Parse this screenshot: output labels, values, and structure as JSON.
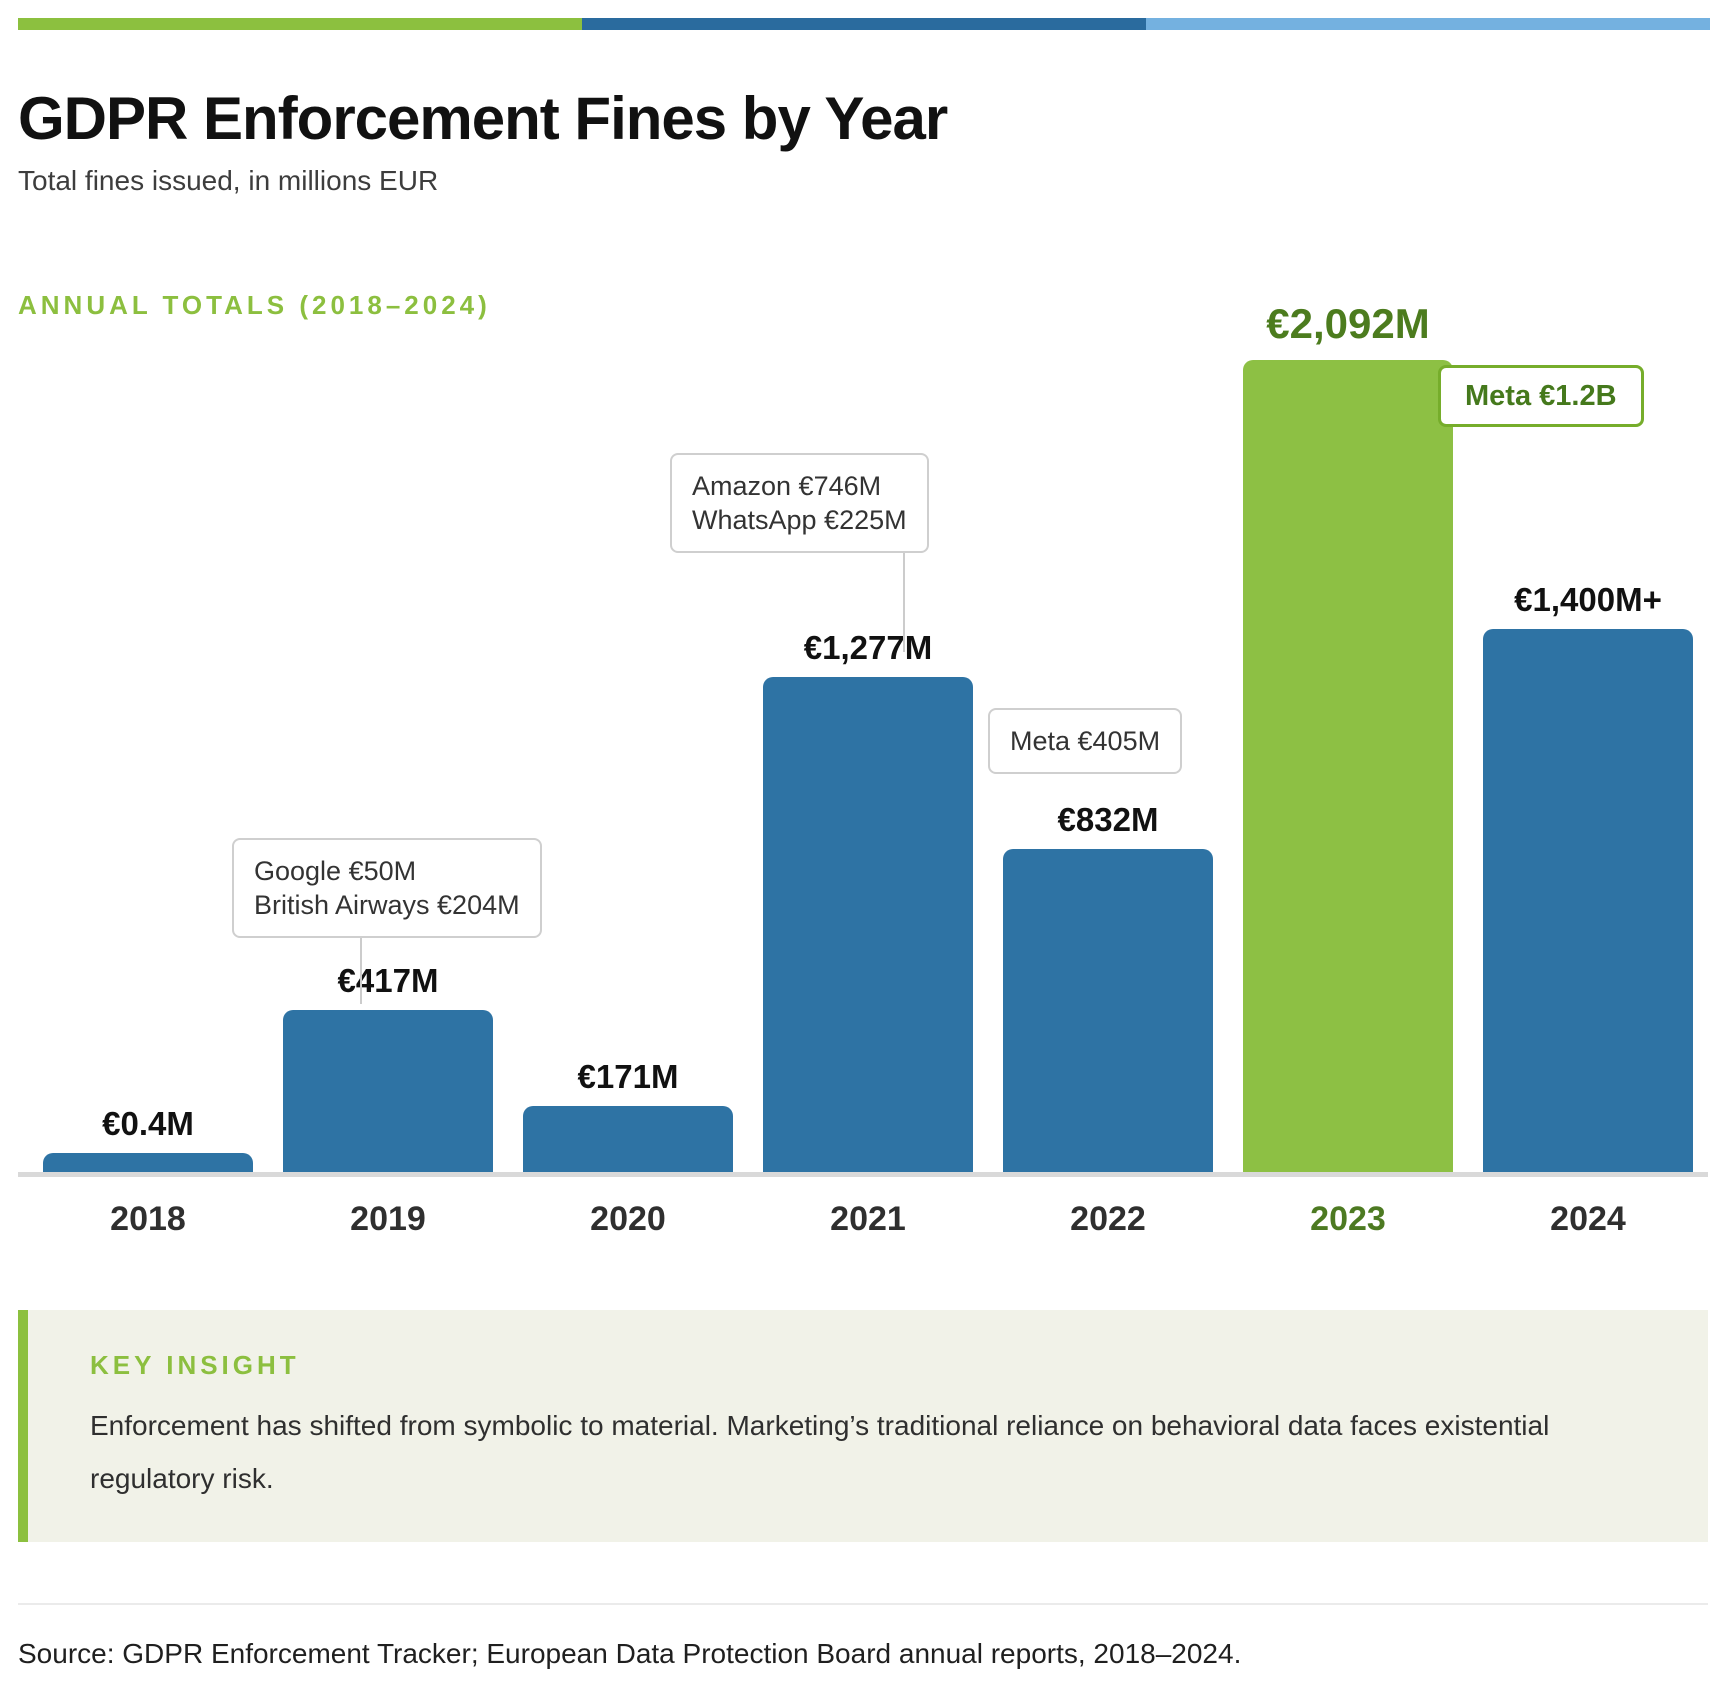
{
  "header": {
    "title": "GDPR Enforcement Fines by Year",
    "subtitle": "Total fines issued, in millions EUR"
  },
  "section_label": "ANNUAL TOTALS (2018–2024)",
  "top_bar": {
    "colors": [
      "#8cc03f",
      "#2a6b9e",
      "#74b1e0"
    ]
  },
  "chart_data": {
    "type": "bar",
    "title": "GDPR Enforcement Fines by Year",
    "subtitle": "Total fines issued, in millions EUR",
    "unit": "millions EUR",
    "categories": [
      "2018",
      "2019",
      "2020",
      "2021",
      "2022",
      "2023",
      "2024"
    ],
    "values": [
      0.4,
      417,
      171,
      1277,
      832,
      2092,
      1400
    ],
    "value_labels": [
      "€0.4M",
      "€417M",
      "€171M",
      "€1,277M",
      "€832M",
      "€2,092M",
      "€1,400M+"
    ],
    "ylim": [
      0,
      2250
    ],
    "grid": false,
    "bar_color": "#2e73a4",
    "highlight_index": 5,
    "highlight_color": "#8dc044",
    "highlight_text_color": "#4c7c1e",
    "annotations": [
      {
        "target_year": "2019",
        "lines": [
          "Google €50M",
          "British Airways €204M"
        ],
        "style": "gray"
      },
      {
        "target_year": "2021",
        "lines": [
          "Amazon €746M",
          "WhatsApp €225M"
        ],
        "style": "gray"
      },
      {
        "target_year": "2022",
        "lines": [
          "Meta €405M"
        ],
        "style": "gray"
      },
      {
        "target_year": "2023",
        "lines": [
          "Meta €1.2B"
        ],
        "style": "green"
      }
    ]
  },
  "insight": {
    "label": "KEY INSIGHT",
    "text": "Enforcement has shifted from symbolic to material. Marketing’s traditional reliance on behavioral data faces existential regulatory risk."
  },
  "source": {
    "text": "Source: GDPR Enforcement Tracker; European Data Protection Board annual reports, 2018–2024."
  }
}
